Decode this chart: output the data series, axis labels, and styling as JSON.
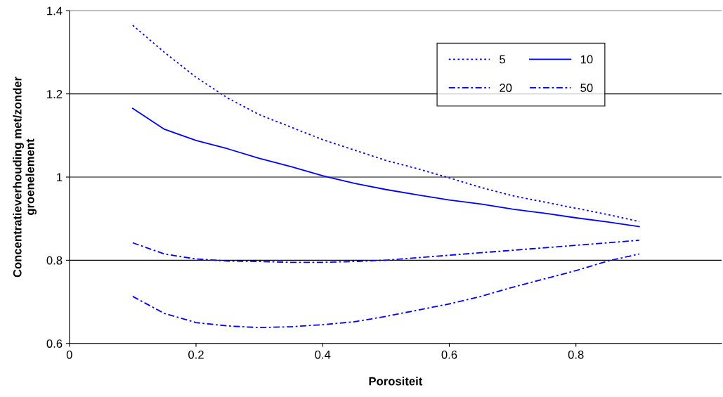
{
  "chart_data": {
    "type": "line",
    "xlabel": "Porositeit",
    "ylabel": "Concentratieverhouding met/zonder\ngroenelement",
    "x": [
      0.1,
      0.15,
      0.2,
      0.25,
      0.3,
      0.35,
      0.4,
      0.45,
      0.5,
      0.55,
      0.6,
      0.65,
      0.7,
      0.75,
      0.8,
      0.85,
      0.9
    ],
    "series": [
      {
        "name": "5",
        "color": "#0000ff",
        "line_style": "dotted",
        "values": [
          1.365,
          1.3,
          1.24,
          1.19,
          1.15,
          1.12,
          1.09,
          1.065,
          1.04,
          1.02,
          0.998,
          0.975,
          0.955,
          0.94,
          0.925,
          0.91,
          0.893
        ]
      },
      {
        "name": "10",
        "color": "#0000ff",
        "line_style": "solid",
        "values": [
          1.165,
          1.115,
          1.088,
          1.068,
          1.045,
          1.025,
          1.003,
          0.985,
          0.97,
          0.957,
          0.945,
          0.935,
          0.923,
          0.913,
          0.902,
          0.892,
          0.881
        ]
      },
      {
        "name": "20",
        "color": "#0000ff",
        "line_style": "dashed",
        "values": [
          0.842,
          0.815,
          0.803,
          0.798,
          0.797,
          0.795,
          0.795,
          0.797,
          0.8,
          0.806,
          0.812,
          0.818,
          0.824,
          0.83,
          0.836,
          0.842,
          0.848
        ]
      },
      {
        "name": "50",
        "color": "#0000ff",
        "line_style": "dashed",
        "values": [
          0.713,
          0.672,
          0.65,
          0.642,
          0.638,
          0.64,
          0.645,
          0.652,
          0.665,
          0.68,
          0.695,
          0.713,
          0.735,
          0.755,
          0.775,
          0.798,
          0.815
        ]
      }
    ],
    "xlim": [
      0,
      1.03
    ],
    "xticks": [
      0,
      0.2,
      0.4,
      0.6,
      0.8
    ],
    "ylim": [
      0.6,
      1.4
    ],
    "yticks": [
      0.6,
      0.8,
      1,
      1.2,
      1.4
    ],
    "grid": "y",
    "legend": "top right",
    "marker": "none"
  }
}
